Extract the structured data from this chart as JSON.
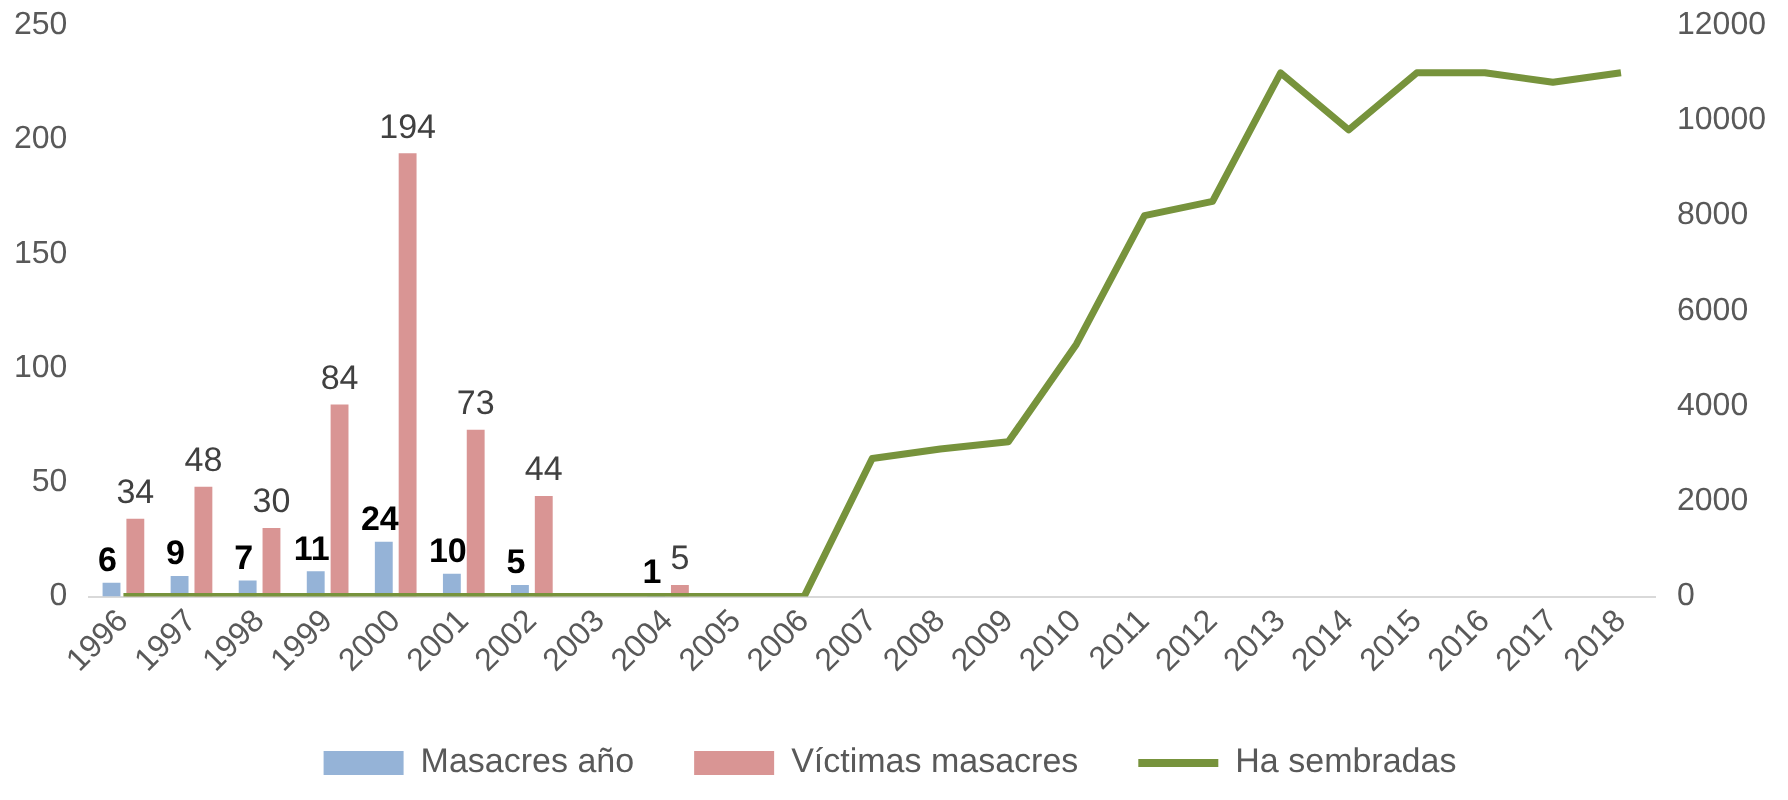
{
  "chart_data": {
    "type": "bar",
    "categories": [
      "1996",
      "1997",
      "1998",
      "1999",
      "2000",
      "2001",
      "2002",
      "2003",
      "2004",
      "2005",
      "2006",
      "2007",
      "2008",
      "2009",
      "2010",
      "2011",
      "2012",
      "2013",
      "2014",
      "2015",
      "2016",
      "2017",
      "2018"
    ],
    "series": [
      {
        "name": "Masacres año",
        "color": "#95b3d7",
        "values": [
          6,
          9,
          7,
          11,
          24,
          10,
          5,
          null,
          1,
          null,
          null,
          null,
          null,
          null,
          null,
          null,
          null,
          null,
          null,
          null,
          null,
          null,
          null
        ],
        "value_labels": [
          "6",
          "9",
          "7",
          "11",
          "24",
          "10",
          "5",
          null,
          "1",
          null,
          null,
          null,
          null,
          null,
          null,
          null,
          null,
          null,
          null,
          null,
          null,
          null,
          null
        ]
      },
      {
        "name": "Víctimas masacres",
        "color": "#d99594",
        "values": [
          34,
          48,
          30,
          84,
          194,
          73,
          44,
          null,
          5,
          null,
          null,
          null,
          null,
          null,
          null,
          null,
          null,
          null,
          null,
          null,
          null,
          null,
          null
        ],
        "value_labels": [
          "34",
          "48",
          "30",
          "84",
          "194",
          "73",
          "44",
          null,
          "5",
          null,
          null,
          null,
          null,
          null,
          null,
          null,
          null,
          null,
          null,
          null,
          null,
          null,
          null
        ]
      },
      {
        "name": "Ha sembradas",
        "color": "#77933c",
        "type": "line",
        "axis": "y2",
        "marker": "none",
        "values": [
          0,
          0,
          0,
          0,
          0,
          0,
          0,
          0,
          0,
          0,
          0,
          2900,
          3100,
          3250,
          5300,
          8000,
          8300,
          11000,
          9800,
          11000,
          11000,
          10800,
          11000
        ]
      }
    ],
    "ylim": [
      0,
      250
    ],
    "yticks": [
      0,
      50,
      100,
      150,
      200,
      250
    ],
    "y2lim": [
      0,
      12000
    ],
    "y2ticks": [
      0,
      2000,
      4000,
      6000,
      8000,
      10000,
      12000
    ],
    "grid": false,
    "legend": "bottom"
  }
}
